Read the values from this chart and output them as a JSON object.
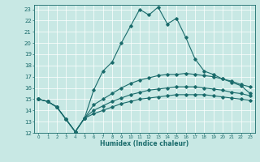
{
  "xlabel": "Humidex (Indice chaleur)",
  "xlim": [
    -0.5,
    23.5
  ],
  "ylim": [
    12,
    23.4
  ],
  "yticks": [
    12,
    13,
    14,
    15,
    16,
    17,
    18,
    19,
    20,
    21,
    22,
    23
  ],
  "xticks": [
    0,
    1,
    2,
    3,
    4,
    5,
    6,
    7,
    8,
    9,
    10,
    11,
    12,
    13,
    14,
    15,
    16,
    17,
    18,
    19,
    20,
    21,
    22,
    23
  ],
  "background_color": "#c8e8e4",
  "grid_color": "#ffffff",
  "line_color": "#1a6b6b",
  "line1_x": [
    0,
    1,
    2,
    3,
    4,
    5,
    6,
    7,
    8,
    9,
    10,
    11,
    12,
    13,
    14,
    15,
    16,
    17,
    18,
    19,
    20,
    21,
    22,
    23
  ],
  "line1_y": [
    15.0,
    14.8,
    14.3,
    13.2,
    12.1,
    13.3,
    15.8,
    17.5,
    18.3,
    20.0,
    21.5,
    23.0,
    22.5,
    23.2,
    21.7,
    22.2,
    20.5,
    18.6,
    17.5,
    17.2,
    16.8,
    16.5,
    16.2,
    15.5
  ],
  "line2_x": [
    0,
    1,
    2,
    3,
    4,
    5,
    6,
    7,
    8,
    9,
    10,
    11,
    12,
    13,
    14,
    15,
    16,
    17,
    18,
    19,
    20,
    21,
    22,
    23
  ],
  "line2_y": [
    15.0,
    14.8,
    14.3,
    13.2,
    12.1,
    13.3,
    14.5,
    15.0,
    15.5,
    16.0,
    16.4,
    16.7,
    16.9,
    17.1,
    17.2,
    17.2,
    17.3,
    17.2,
    17.1,
    17.0,
    16.8,
    16.6,
    16.3,
    16.1
  ],
  "line3_x": [
    0,
    1,
    2,
    3,
    4,
    5,
    6,
    7,
    8,
    9,
    10,
    11,
    12,
    13,
    14,
    15,
    16,
    17,
    18,
    19,
    20,
    21,
    22,
    23
  ],
  "line3_y": [
    15.0,
    14.8,
    14.3,
    13.2,
    12.1,
    13.3,
    14.0,
    14.4,
    14.8,
    15.1,
    15.4,
    15.6,
    15.8,
    15.9,
    16.0,
    16.1,
    16.1,
    16.1,
    16.0,
    15.9,
    15.8,
    15.6,
    15.5,
    15.3
  ],
  "line4_x": [
    0,
    1,
    2,
    3,
    4,
    5,
    6,
    7,
    8,
    9,
    10,
    11,
    12,
    13,
    14,
    15,
    16,
    17,
    18,
    19,
    20,
    21,
    22,
    23
  ],
  "line4_y": [
    15.0,
    14.8,
    14.3,
    13.2,
    12.1,
    13.3,
    13.7,
    14.0,
    14.3,
    14.6,
    14.8,
    15.0,
    15.1,
    15.2,
    15.3,
    15.4,
    15.4,
    15.4,
    15.4,
    15.3,
    15.2,
    15.1,
    15.0,
    14.9
  ]
}
